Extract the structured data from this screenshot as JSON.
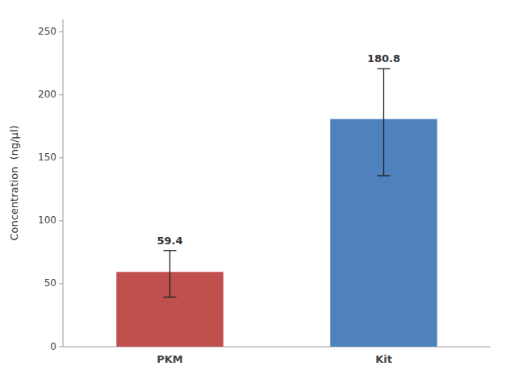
{
  "chart_data": {
    "type": "bar",
    "categories": [
      "PKM",
      "Kit"
    ],
    "values": [
      59.4,
      180.8
    ],
    "errors_up": [
      17.0,
      40.0
    ],
    "errors_down": [
      20.0,
      45.0
    ],
    "colors": [
      "#c0504d",
      "#4f81bd"
    ],
    "ylabel": "Concentration  (ng/µl)",
    "ylim": [
      0,
      260
    ],
    "yticks": [
      0,
      50,
      100,
      150,
      200,
      250
    ],
    "data_labels": true,
    "grid": false
  }
}
